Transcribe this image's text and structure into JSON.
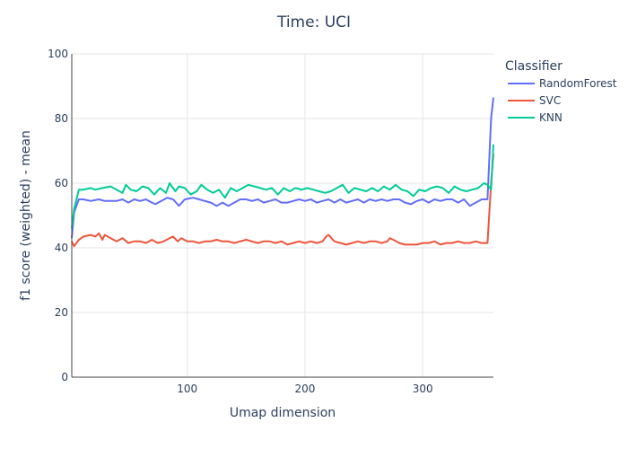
{
  "chart_data": {
    "type": "line",
    "title": "Time: UCI",
    "xlabel": "Umap dimension",
    "ylabel": "f1 score (weighted) - mean",
    "xlim": [
      2,
      360
    ],
    "ylim": [
      0,
      100
    ],
    "xticks": [
      100,
      200,
      300
    ],
    "yticks": [
      0,
      20,
      40,
      60,
      80,
      100
    ],
    "grid": true,
    "legend": {
      "title": "Classifier",
      "placement": "right"
    },
    "series": [
      {
        "name": "RandomForest",
        "color": "#636efa",
        "x": [
          2,
          4,
          8,
          12,
          18,
          25,
          30,
          40,
          45,
          50,
          55,
          60,
          65,
          70,
          73,
          78,
          83,
          88,
          93,
          98,
          105,
          110,
          115,
          120,
          125,
          130,
          135,
          140,
          145,
          150,
          155,
          160,
          165,
          170,
          175,
          180,
          185,
          190,
          195,
          200,
          205,
          210,
          215,
          220,
          225,
          230,
          235,
          240,
          245,
          250,
          255,
          260,
          265,
          270,
          275,
          280,
          285,
          290,
          295,
          300,
          305,
          310,
          315,
          320,
          325,
          330,
          335,
          340,
          345,
          350,
          355,
          358,
          360
        ],
        "y": [
          43,
          51,
          55,
          55,
          54.5,
          55,
          54.5,
          54.5,
          55,
          54,
          55,
          54.5,
          55,
          54,
          53.5,
          54.5,
          55.5,
          55,
          53,
          55,
          55.5,
          55,
          54.5,
          54,
          53,
          54,
          53,
          54,
          55,
          55,
          54.5,
          55,
          54,
          54.5,
          55,
          54,
          54,
          54.5,
          55,
          54.5,
          55,
          54,
          54.5,
          55,
          54,
          55,
          54,
          54.5,
          55,
          54,
          55,
          54.5,
          55,
          54.5,
          55,
          55,
          54,
          53.5,
          54.5,
          55,
          54,
          55,
          54.5,
          55,
          55,
          54,
          55,
          53,
          54,
          55,
          55,
          80,
          86.5
        ]
      },
      {
        "name": "SVC",
        "color": "#ef553b",
        "x": [
          2,
          4,
          8,
          12,
          18,
          22,
          25,
          28,
          30,
          35,
          40,
          45,
          50,
          55,
          60,
          65,
          70,
          75,
          80,
          85,
          88,
          92,
          95,
          100,
          105,
          110,
          115,
          120,
          125,
          130,
          135,
          140,
          145,
          150,
          155,
          160,
          165,
          170,
          175,
          180,
          185,
          190,
          195,
          200,
          205,
          210,
          215,
          218,
          220,
          225,
          230,
          235,
          240,
          245,
          250,
          255,
          260,
          265,
          270,
          272,
          275,
          280,
          285,
          290,
          295,
          300,
          305,
          310,
          315,
          320,
          325,
          330,
          335,
          340,
          345,
          350,
          355,
          358,
          360
        ],
        "y": [
          42,
          40.5,
          42.5,
          43.5,
          44,
          43.5,
          44.5,
          42.5,
          44,
          43,
          42,
          43,
          41.5,
          42,
          42,
          41.5,
          42.5,
          41.5,
          42,
          43,
          43.5,
          42,
          43,
          42,
          42,
          41.5,
          42,
          42,
          42.5,
          42,
          42,
          41.5,
          42,
          42.5,
          42,
          41.5,
          42,
          42,
          41.5,
          42,
          41,
          41.5,
          42,
          41.5,
          42,
          41.5,
          42,
          43.5,
          44,
          42,
          41.5,
          41,
          41.5,
          42,
          41.5,
          42,
          42,
          41.5,
          42,
          43,
          42.5,
          41.5,
          41,
          41,
          41,
          41.5,
          41.5,
          42,
          41,
          41.5,
          41.5,
          42,
          41.5,
          41.5,
          42,
          41.5,
          41.5,
          60,
          69
        ]
      },
      {
        "name": "KNN",
        "color": "#00cc96",
        "x": [
          2,
          4,
          8,
          12,
          18,
          22,
          28,
          35,
          40,
          45,
          48,
          52,
          57,
          62,
          67,
          72,
          77,
          82,
          85,
          90,
          93,
          98,
          103,
          108,
          112,
          117,
          122,
          127,
          132,
          137,
          142,
          147,
          152,
          157,
          162,
          167,
          172,
          177,
          182,
          187,
          192,
          197,
          202,
          207,
          212,
          217,
          222,
          227,
          232,
          237,
          242,
          247,
          252,
          257,
          262,
          267,
          272,
          277,
          282,
          287,
          292,
          297,
          302,
          307,
          312,
          317,
          322,
          327,
          332,
          337,
          342,
          347,
          352,
          355,
          358,
          360
        ],
        "y": [
          46,
          52,
          58,
          58,
          58.5,
          58,
          58.5,
          59,
          58,
          57,
          59.5,
          58,
          57.5,
          59,
          58.5,
          56.5,
          58.5,
          57,
          60,
          57.5,
          59,
          58.5,
          56.5,
          57.5,
          59.5,
          58,
          57,
          58,
          55.5,
          58.5,
          57.5,
          58.5,
          59.5,
          59,
          58.5,
          58,
          58.5,
          56.5,
          58.5,
          57.5,
          58.5,
          58,
          58.5,
          58,
          57.5,
          57,
          57.5,
          58.5,
          59.5,
          57,
          58.5,
          58,
          57.5,
          58.5,
          57.5,
          59,
          58,
          59.5,
          58,
          57.5,
          56,
          58,
          57.5,
          58.5,
          59,
          58.5,
          57,
          59,
          58,
          57.5,
          58,
          58.5,
          60,
          59.5,
          58,
          72
        ]
      }
    ]
  }
}
